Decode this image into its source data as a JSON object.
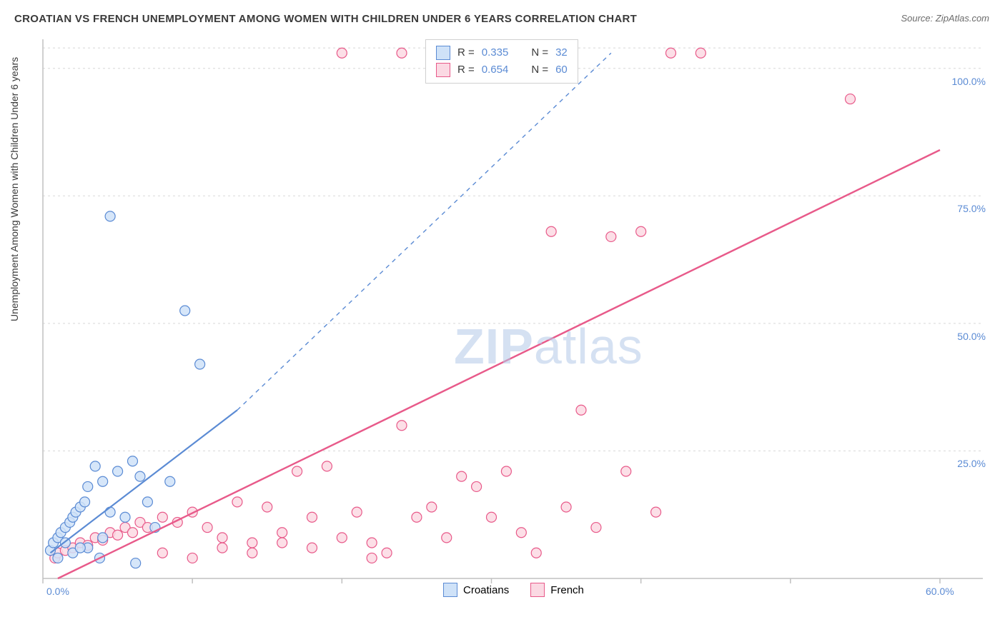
{
  "title": "CROATIAN VS FRENCH UNEMPLOYMENT AMONG WOMEN WITH CHILDREN UNDER 6 YEARS CORRELATION CHART",
  "source": "Source: ZipAtlas.com",
  "ylabel": "Unemployment Among Women with Children Under 6 years",
  "watermark_zip": "ZIP",
  "watermark_atlas": "atlas",
  "chart": {
    "type": "scatter",
    "xlim": [
      0,
      60
    ],
    "ylim": [
      0,
      105
    ],
    "xticks": [
      0,
      10,
      20,
      30,
      40,
      50,
      60
    ],
    "xtick_labels": [
      "0.0%",
      "",
      "",
      "",
      "",
      "",
      "60.0%"
    ],
    "yticks": [
      25,
      50,
      75,
      100
    ],
    "ytick_labels": [
      "25.0%",
      "50.0%",
      "75.0%",
      "100.0%"
    ],
    "grid_color": "#d8d8d8",
    "axis_color": "#c0c0c0",
    "background_color": "#ffffff",
    "marker_radius": 7,
    "marker_stroke": 1.2,
    "series": [
      {
        "name": "Croatians",
        "fill": "#cfe2f8",
        "stroke": "#5b8bd4",
        "r_value": "0.335",
        "n_value": "32",
        "points": [
          [
            0.5,
            5.5
          ],
          [
            0.7,
            7
          ],
          [
            1,
            8
          ],
          [
            1.2,
            9
          ],
          [
            1.5,
            10
          ],
          [
            1.8,
            11
          ],
          [
            2,
            12
          ],
          [
            2.2,
            13
          ],
          [
            2.5,
            14
          ],
          [
            2.8,
            15
          ],
          [
            3,
            18
          ],
          [
            3.5,
            22
          ],
          [
            4,
            19
          ],
          [
            4.5,
            13
          ],
          [
            5,
            21
          ],
          [
            5.5,
            12
          ],
          [
            6,
            23
          ],
          [
            6.5,
            20
          ],
          [
            7,
            15
          ],
          [
            7.5,
            10
          ],
          [
            4,
            8
          ],
          [
            3,
            6
          ],
          [
            2,
            5
          ],
          [
            1,
            4
          ],
          [
            1.5,
            7
          ],
          [
            2.5,
            6
          ],
          [
            3.8,
            4
          ],
          [
            6.2,
            3
          ],
          [
            8.5,
            19
          ],
          [
            4.5,
            71
          ],
          [
            9.5,
            52.5
          ],
          [
            10.5,
            42
          ]
        ],
        "trend": {
          "x1": 0.5,
          "y1": 5,
          "x2": 13,
          "y2": 33,
          "dash_x2": 38,
          "dash_y2": 103,
          "solid_width": 2.2,
          "dash_width": 1.4
        }
      },
      {
        "name": "French",
        "fill": "#fbd9e3",
        "stroke": "#e85a8a",
        "r_value": "0.654",
        "n_value": "60",
        "points": [
          [
            0.8,
            4
          ],
          [
            1,
            5
          ],
          [
            1.5,
            5.5
          ],
          [
            2,
            6
          ],
          [
            2.5,
            7
          ],
          [
            3,
            6.5
          ],
          [
            3.5,
            8
          ],
          [
            4,
            7.5
          ],
          [
            4.5,
            9
          ],
          [
            5,
            8.5
          ],
          [
            5.5,
            10
          ],
          [
            6,
            9
          ],
          [
            6.5,
            11
          ],
          [
            7,
            10
          ],
          [
            8,
            12
          ],
          [
            9,
            11
          ],
          [
            10,
            13
          ],
          [
            11,
            10
          ],
          [
            12,
            8
          ],
          [
            13,
            15
          ],
          [
            14,
            7
          ],
          [
            15,
            14
          ],
          [
            16,
            9
          ],
          [
            17,
            21
          ],
          [
            18,
            12
          ],
          [
            19,
            22
          ],
          [
            20,
            8
          ],
          [
            21,
            13
          ],
          [
            22,
            7
          ],
          [
            23,
            5
          ],
          [
            24,
            30
          ],
          [
            25,
            12
          ],
          [
            26,
            14
          ],
          [
            27,
            8
          ],
          [
            28,
            20
          ],
          [
            29,
            18
          ],
          [
            30,
            12
          ],
          [
            31,
            21
          ],
          [
            32,
            9
          ],
          [
            33,
            5
          ],
          [
            34,
            68
          ],
          [
            35,
            14
          ],
          [
            36,
            33
          ],
          [
            37,
            10
          ],
          [
            38,
            67
          ],
          [
            39,
            21
          ],
          [
            40,
            68
          ],
          [
            41,
            13
          ],
          [
            42,
            103
          ],
          [
            44,
            103
          ],
          [
            24,
            103
          ],
          [
            54,
            94
          ],
          [
            20,
            103
          ],
          [
            8,
            5
          ],
          [
            10,
            4
          ],
          [
            12,
            6
          ],
          [
            14,
            5
          ],
          [
            16,
            7
          ],
          [
            18,
            6
          ],
          [
            22,
            4
          ]
        ],
        "trend": {
          "x1": 1,
          "y1": 0,
          "x2": 60,
          "y2": 84,
          "solid_width": 2.4
        }
      }
    ]
  },
  "stats_labels": {
    "r": "R =",
    "n": "N ="
  },
  "legend": {
    "croatians": "Croatians",
    "french": "French"
  }
}
